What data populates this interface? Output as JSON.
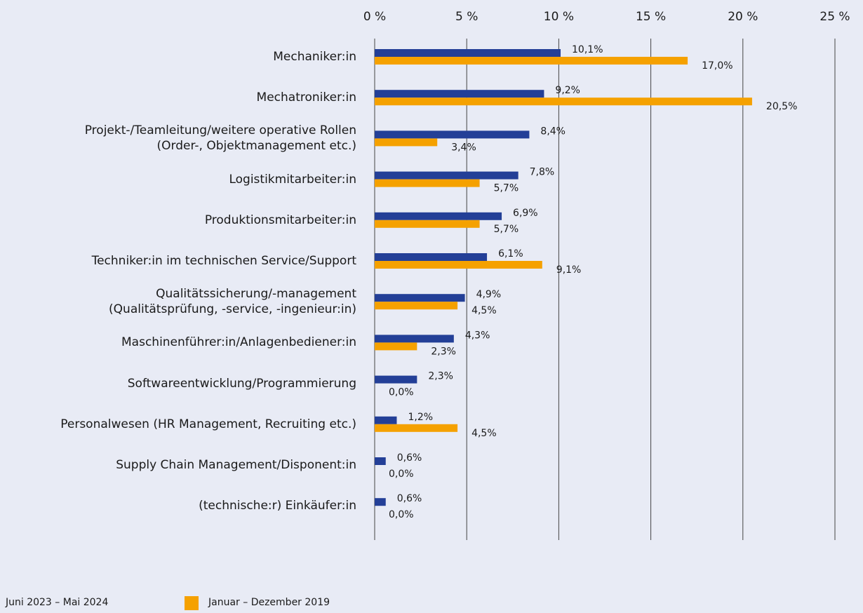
{
  "chart_data": {
    "type": "bar",
    "orientation": "horizontal",
    "categories": [
      "Mechaniker:in",
      "Mechatroniker:in",
      "Projekt-/Teamleitung/weitere operative Rollen\n(Order-, Objektmanagement etc.)",
      "Logistikmitarbeiter:in",
      "Produktionsmitarbeiter:in",
      "Techniker:in im technischen Service/Support",
      "Qualitätssicherung/-management\n(Qualitätsprüfung, -service, -ingenieur:in)",
      "Maschinenführer:in/Anlagenbediener:in",
      "Softwareentwicklung/Programmierung",
      "Personalwesen (HR Management, Recruiting etc.)",
      "Supply Chain Management/Disponent:in",
      "(technische:r) Einkäufer:in"
    ],
    "series": [
      {
        "name": "Juni 2023 – Mai 2024",
        "color": "#233f97",
        "values": [
          10.1,
          9.2,
          8.4,
          7.8,
          6.9,
          6.1,
          4.9,
          4.3,
          2.3,
          1.2,
          0.6,
          0.6
        ],
        "value_labels": [
          "10,1%",
          "9,2%",
          "8,4%",
          "7,8%",
          "6,9%",
          "6,1%",
          "4,9%",
          "4,3%",
          "2,3%",
          "1,2%",
          "0,6%",
          "0,6%"
        ]
      },
      {
        "name": "Januar – Dezember 2019",
        "color": "#f5a100",
        "values": [
          17.0,
          20.5,
          3.4,
          5.7,
          5.7,
          9.1,
          4.5,
          2.3,
          0.0,
          4.5,
          0.0,
          0.0
        ],
        "value_labels": [
          "17,0%",
          "20,5%",
          "3,4%",
          "5,7%",
          "5,7%",
          "9,1%",
          "4,5%",
          "2,3%",
          "0,0%",
          "4,5%",
          "0,0%",
          "0,0%"
        ]
      }
    ],
    "xlim": [
      0,
      25
    ],
    "xticks": [
      {
        "value": 0,
        "label": "0 %"
      },
      {
        "value": 5,
        "label": "5 %"
      },
      {
        "value": 10,
        "label": "10 %"
      },
      {
        "value": 15,
        "label": "15 %"
      },
      {
        "value": 20,
        "label": "20 %"
      },
      {
        "value": 25,
        "label": "25 %"
      }
    ],
    "grid": true
  }
}
